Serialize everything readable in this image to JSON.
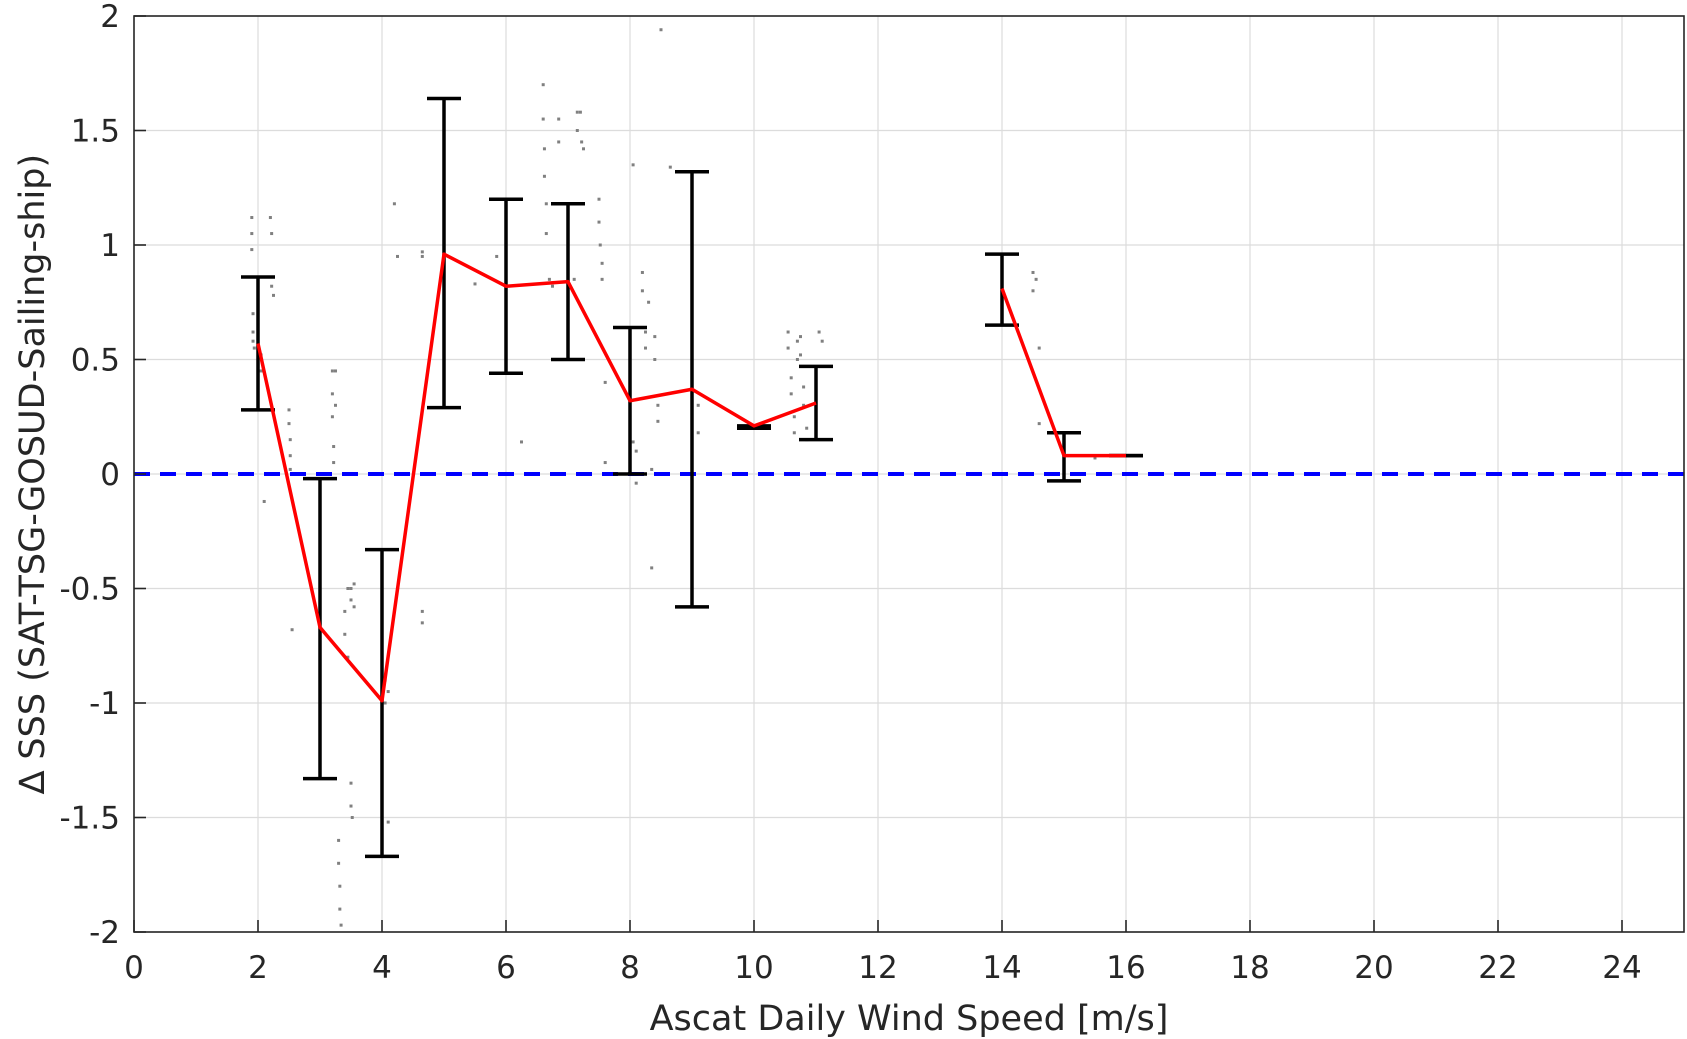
{
  "chart_data": {
    "type": "line",
    "title": "",
    "xlabel": "Ascat Daily Wind Speed [m/s]",
    "ylabel": "∆ SSS (SAT-TSG-GOSUD-Sailing-ship)",
    "xlim": [
      0,
      25
    ],
    "ylim": [
      -2,
      2
    ],
    "xticks": [
      0,
      2,
      4,
      6,
      8,
      10,
      12,
      14,
      16,
      18,
      20,
      22,
      24
    ],
    "yticks": [
      2,
      1.5,
      1,
      0.5,
      0,
      -0.5,
      -1,
      -1.5,
      -2
    ],
    "grid": true,
    "reference_line": {
      "y": 0,
      "style": "dashed",
      "color": "#0000ff"
    },
    "series": [
      {
        "style": "line",
        "color": "#ff0000",
        "segments": [
          [
            [
              2,
              0.57
            ],
            [
              3,
              -0.67
            ],
            [
              4,
              -0.99
            ],
            [
              5,
              0.96
            ],
            [
              6,
              0.82
            ],
            [
              7,
              0.84
            ],
            [
              8,
              0.32
            ],
            [
              9,
              0.37
            ],
            [
              10,
              0.21
            ],
            [
              11,
              0.31
            ]
          ],
          [
            [
              14,
              0.81
            ],
            [
              15,
              0.08
            ],
            [
              16,
              0.08
            ]
          ]
        ]
      }
    ],
    "error_bars": [
      {
        "x": 2,
        "low": 0.28,
        "high": 0.86
      },
      {
        "x": 3,
        "low": -1.33,
        "high": -0.02
      },
      {
        "x": 4,
        "low": -1.67,
        "high": -0.33
      },
      {
        "x": 5,
        "low": 0.29,
        "high": 1.64
      },
      {
        "x": 6,
        "low": 0.44,
        "high": 1.2
      },
      {
        "x": 7,
        "low": 0.5,
        "high": 1.18
      },
      {
        "x": 8,
        "low": 0.0,
        "high": 0.64
      },
      {
        "x": 9,
        "low": -0.58,
        "high": 1.32
      },
      {
        "x": 10,
        "low": 0.2,
        "high": 0.21
      },
      {
        "x": 11,
        "low": 0.15,
        "high": 0.47
      },
      {
        "x": 14,
        "low": 0.65,
        "high": 0.96
      },
      {
        "x": 15,
        "low": -0.03,
        "high": 0.18
      },
      {
        "x": 16,
        "low": 0.08,
        "high": 0.08
      }
    ],
    "scatter_points": [
      [
        1.9,
        1.12
      ],
      [
        1.9,
        1.05
      ],
      [
        1.9,
        0.98
      ],
      [
        1.92,
        0.7
      ],
      [
        1.92,
        0.62
      ],
      [
        1.92,
        0.58
      ],
      [
        1.94,
        0.55
      ],
      [
        2.05,
        0.52
      ],
      [
        2.05,
        0.45
      ],
      [
        2.1,
        -0.12
      ],
      [
        2.2,
        1.12
      ],
      [
        2.22,
        1.05
      ],
      [
        2.22,
        0.82
      ],
      [
        2.25,
        0.78
      ],
      [
        2.5,
        0.28
      ],
      [
        2.5,
        0.22
      ],
      [
        2.52,
        0.15
      ],
      [
        2.52,
        0.08
      ],
      [
        2.52,
        0.02
      ],
      [
        2.55,
        -0.68
      ],
      [
        3.2,
        0.45
      ],
      [
        3.2,
        0.35
      ],
      [
        3.2,
        0.25
      ],
      [
        3.22,
        0.12
      ],
      [
        3.22,
        0.05
      ],
      [
        3.25,
        0.45
      ],
      [
        3.25,
        0.3
      ],
      [
        3.3,
        -1.6
      ],
      [
        3.3,
        -1.7
      ],
      [
        3.32,
        -1.8
      ],
      [
        3.32,
        -1.9
      ],
      [
        3.34,
        -1.97
      ],
      [
        3.4,
        -0.6
      ],
      [
        3.4,
        -0.7
      ],
      [
        3.45,
        -0.5
      ],
      [
        3.45,
        -0.8
      ],
      [
        3.5,
        -0.5
      ],
      [
        3.5,
        -0.55
      ],
      [
        3.55,
        -0.48
      ],
      [
        3.55,
        -0.58
      ],
      [
        3.5,
        -1.35
      ],
      [
        3.5,
        -1.45
      ],
      [
        3.52,
        -1.5
      ],
      [
        4.05,
        -0.9
      ],
      [
        4.05,
        -1.0
      ],
      [
        4.1,
        -0.95
      ],
      [
        4.1,
        -1.52
      ],
      [
        4.2,
        1.18
      ],
      [
        4.25,
        0.95
      ],
      [
        4.65,
        0.97
      ],
      [
        4.65,
        0.95
      ],
      [
        4.65,
        -0.6
      ],
      [
        4.65,
        -0.65
      ],
      [
        5.5,
        0.83
      ],
      [
        5.85,
        0.95
      ],
      [
        6.25,
        0.14
      ],
      [
        6.6,
        1.7
      ],
      [
        6.6,
        1.55
      ],
      [
        6.62,
        1.42
      ],
      [
        6.62,
        1.3
      ],
      [
        6.65,
        1.18
      ],
      [
        6.65,
        1.05
      ],
      [
        6.7,
        0.85
      ],
      [
        6.75,
        0.82
      ],
      [
        6.85,
        1.55
      ],
      [
        6.85,
        1.45
      ],
      [
        7.15,
        1.58
      ],
      [
        7.15,
        1.5
      ],
      [
        7.2,
        1.58
      ],
      [
        7.22,
        1.45
      ],
      [
        7.25,
        1.42
      ],
      [
        7.1,
        0.85
      ],
      [
        7.5,
        1.2
      ],
      [
        7.5,
        1.1
      ],
      [
        7.52,
        1.0
      ],
      [
        7.55,
        0.92
      ],
      [
        7.55,
        0.85
      ],
      [
        7.6,
        0.4
      ],
      [
        7.6,
        0.05
      ],
      [
        8.05,
        1.35
      ],
      [
        8.05,
        0.14
      ],
      [
        8.1,
        0.1
      ],
      [
        8.1,
        -0.04
      ],
      [
        8.2,
        0.88
      ],
      [
        8.2,
        0.8
      ],
      [
        8.25,
        0.62
      ],
      [
        8.25,
        0.55
      ],
      [
        8.3,
        0.75
      ],
      [
        8.35,
        -0.41
      ],
      [
        8.35,
        0.02
      ],
      [
        8.4,
        0.6
      ],
      [
        8.4,
        0.5
      ],
      [
        8.45,
        0.3
      ],
      [
        8.45,
        0.23
      ],
      [
        8.5,
        1.94
      ],
      [
        8.65,
        1.34
      ],
      [
        9.1,
        0.3
      ],
      [
        9.1,
        0.18
      ],
      [
        10.55,
        0.62
      ],
      [
        10.55,
        0.55
      ],
      [
        10.6,
        0.42
      ],
      [
        10.6,
        0.35
      ],
      [
        10.65,
        0.25
      ],
      [
        10.65,
        0.18
      ],
      [
        10.7,
        0.58
      ],
      [
        10.7,
        0.5
      ],
      [
        10.75,
        0.6
      ],
      [
        10.75,
        0.52
      ],
      [
        10.8,
        0.38
      ],
      [
        10.8,
        0.3
      ],
      [
        10.85,
        0.2
      ],
      [
        10.85,
        0.15
      ],
      [
        11.05,
        0.62
      ],
      [
        11.1,
        0.58
      ],
      [
        14.5,
        0.88
      ],
      [
        14.5,
        0.8
      ],
      [
        14.55,
        0.85
      ],
      [
        14.6,
        0.55
      ],
      [
        14.6,
        0.22
      ],
      [
        15.5,
        0.07
      ]
    ]
  }
}
